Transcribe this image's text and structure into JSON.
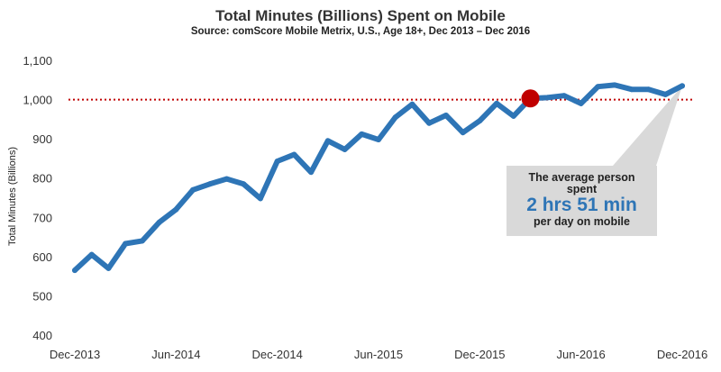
{
  "chart_data": {
    "type": "line",
    "title": "Total Minutes (Billions) Spent on Mobile",
    "subtitle": "Source: comScore Mobile Metrix, U.S., Age 18+, Dec 2013 – Dec 2016",
    "ylabel": "Total Minutes (Billions)",
    "xlabel": "",
    "ylim": [
      400,
      1100
    ],
    "yticks": [
      "1,100",
      "1,000",
      "900",
      "800",
      "700",
      "600",
      "500",
      "400"
    ],
    "xtick_labels": [
      "Dec-2013",
      "Jun-2014",
      "Dec-2014",
      "Jun-2015",
      "Dec-2015",
      "Jun-2016",
      "Dec-2016"
    ],
    "x": [
      "Dec-2013",
      "Jan-2014",
      "Feb-2014",
      "Mar-2014",
      "Apr-2014",
      "May-2014",
      "Jun-2014",
      "Jul-2014",
      "Aug-2014",
      "Sep-2014",
      "Oct-2014",
      "Nov-2014",
      "Dec-2014",
      "Jan-2015",
      "Feb-2015",
      "Mar-2015",
      "Apr-2015",
      "May-2015",
      "Jun-2015",
      "Jul-2015",
      "Aug-2015",
      "Sep-2015",
      "Oct-2015",
      "Nov-2015",
      "Dec-2015",
      "Jan-2016",
      "Feb-2016",
      "Mar-2016",
      "Apr-2016",
      "May-2016",
      "Jun-2016",
      "Jul-2016",
      "Aug-2016",
      "Sep-2016",
      "Oct-2016",
      "Nov-2016",
      "Dec-2016"
    ],
    "series": [
      {
        "name": "",
        "color": "#2e75b6",
        "values": [
          565,
          605,
          570,
          633,
          640,
          687,
          720,
          770,
          785,
          798,
          785,
          748,
          843,
          860,
          815,
          895,
          873,
          912,
          898,
          955,
          988,
          940,
          960,
          916,
          946,
          990,
          958,
          1003,
          1005,
          1010,
          990,
          1033,
          1037,
          1026,
          1026,
          1013,
          1035
        ]
      }
    ],
    "reference_line": {
      "value": 1000,
      "style": "dotted",
      "color": "#c00000"
    },
    "marker": {
      "x": "Mar-2016",
      "value": 1003,
      "color": "#c00000"
    },
    "callout": {
      "line1": "The average person",
      "line2": "spent",
      "highlight": "2 hrs 51 min",
      "line3": "per day on mobile",
      "color": "#2e75b6"
    },
    "grid": false,
    "legend": "none"
  }
}
